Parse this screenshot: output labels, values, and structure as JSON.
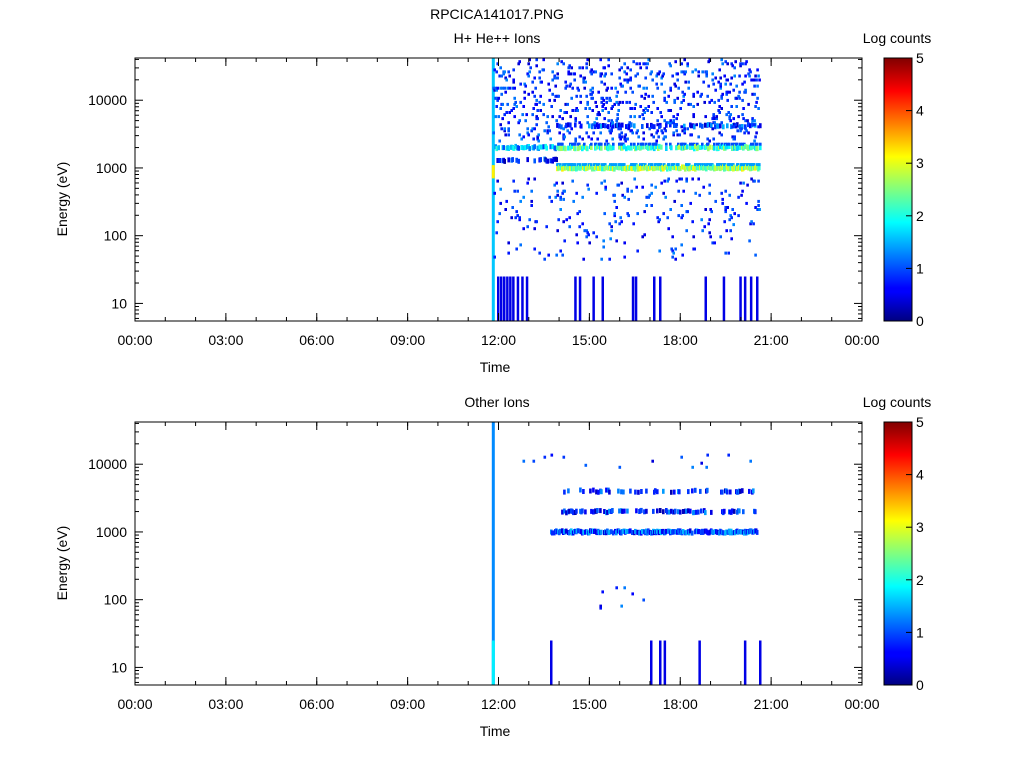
{
  "page_title": "RPCICA141017.PNG",
  "chart_data": [
    {
      "type": "heatmap",
      "title": "H+ He++ Ions",
      "xlabel": "Time",
      "ylabel": "Energy (eV)",
      "x_ticks": [
        "00:00",
        "03:00",
        "06:00",
        "09:00",
        "12:00",
        "15:00",
        "18:00",
        "21:00",
        "00:00"
      ],
      "x_range_hours": [
        0,
        24
      ],
      "y_scale": "log",
      "y_ticks": [
        {
          "value": 10,
          "label": "10"
        },
        {
          "value": 100,
          "label": "100"
        },
        {
          "value": 1000,
          "label": "1000"
        },
        {
          "value": 10000,
          "label": "10000"
        }
      ],
      "y_range": [
        5.5,
        42000
      ],
      "colorbar": {
        "label": "Log counts",
        "range": [
          0,
          5
        ],
        "ticks": [
          "0",
          "1",
          "2",
          "3",
          "4",
          "5"
        ]
      },
      "data_coverage_hours": [
        11.75,
        20.6
      ],
      "seed": 7,
      "features": [
        {
          "kind": "column",
          "x": 11.78,
          "y_from": 5.5,
          "y_to": 42000,
          "level": 1.6
        },
        {
          "kind": "column",
          "x": 11.78,
          "y_from": 700,
          "y_to": 1100,
          "level": 3.2
        },
        {
          "kind": "band",
          "x_from": 11.8,
          "x_to": 13.9,
          "energy": 2000,
          "level": 1.5,
          "density": 0.6
        },
        {
          "kind": "band",
          "x_from": 13.9,
          "x_to": 20.6,
          "energy": 2000,
          "level": 2.2,
          "density": 0.6
        },
        {
          "kind": "band",
          "x_from": 11.8,
          "x_to": 13.9,
          "energy": 1300,
          "level": 0.7,
          "density": 0.4
        },
        {
          "kind": "band",
          "x_from": 13.9,
          "x_to": 20.6,
          "energy": 1000,
          "level": 2.6,
          "density": 0.95
        },
        {
          "kind": "band",
          "x_from": 13.9,
          "x_to": 20.6,
          "energy": 4200,
          "level": 0.9,
          "density": 0.35
        },
        {
          "kind": "scatter",
          "x_from": 11.8,
          "x_to": 20.6,
          "y_from": 2500,
          "y_to": 40000,
          "level": 0.4,
          "density": 0.35
        },
        {
          "kind": "scatter",
          "x_from": 11.8,
          "x_to": 20.6,
          "y_from": 150,
          "y_to": 700,
          "level": 0.4,
          "density": 0.16
        },
        {
          "kind": "scatter",
          "x_from": 11.8,
          "x_to": 20.6,
          "y_from": 45,
          "y_to": 150,
          "level": 0.4,
          "density": 0.08
        },
        {
          "kind": "bars",
          "y_from": 5.5,
          "y_to": 25,
          "level": 0.5,
          "xs": [
            11.95,
            12.05,
            12.15,
            12.25,
            12.35,
            12.45,
            12.6,
            12.75,
            12.9,
            14.5,
            14.65,
            15.1,
            15.4,
            16.4,
            16.5,
            17.1,
            17.3,
            18.8,
            19.4,
            19.95,
            20.1,
            20.3,
            20.5
          ]
        }
      ]
    },
    {
      "type": "heatmap",
      "title": "Other Ions",
      "xlabel": "Time",
      "ylabel": "Energy (eV)",
      "x_ticks": [
        "00:00",
        "03:00",
        "06:00",
        "09:00",
        "12:00",
        "15:00",
        "18:00",
        "21:00",
        "00:00"
      ],
      "x_range_hours": [
        0,
        24
      ],
      "y_scale": "log",
      "y_ticks": [
        {
          "value": 10,
          "label": "10"
        },
        {
          "value": 100,
          "label": "100"
        },
        {
          "value": 1000,
          "label": "1000"
        },
        {
          "value": 10000,
          "label": "10000"
        }
      ],
      "y_range": [
        5.5,
        42000
      ],
      "colorbar": {
        "label": "Log counts",
        "range": [
          0,
          5
        ],
        "ticks": [
          "0",
          "1",
          "2",
          "3",
          "4",
          "5"
        ]
      },
      "data_coverage_hours": [
        11.75,
        20.6
      ],
      "seed": 13,
      "features": [
        {
          "kind": "column",
          "x": 11.78,
          "y_from": 5.5,
          "y_to": 42000,
          "level": 1.3
        },
        {
          "kind": "column",
          "x": 11.78,
          "y_from": 5.5,
          "y_to": 25,
          "level": 1.8
        },
        {
          "kind": "band",
          "x_from": 13.7,
          "x_to": 20.5,
          "energy": 1000,
          "level": 1.0,
          "density": 0.9
        },
        {
          "kind": "band",
          "x_from": 14.0,
          "x_to": 20.5,
          "energy": 2000,
          "level": 0.8,
          "density": 0.45
        },
        {
          "kind": "band",
          "x_from": 14.0,
          "x_to": 20.5,
          "energy": 4000,
          "level": 0.8,
          "density": 0.3
        },
        {
          "kind": "scatter",
          "x_from": 12.0,
          "x_to": 20.5,
          "y_from": 9000,
          "y_to": 14000,
          "level": 0.4,
          "density": 0.03
        },
        {
          "kind": "scatter",
          "x_from": 15.0,
          "x_to": 17.5,
          "y_from": 75,
          "y_to": 200,
          "level": 0.4,
          "density": 0.04
        },
        {
          "kind": "bars",
          "y_from": 5.5,
          "y_to": 25,
          "level": 0.5,
          "xs": [
            13.7,
            17.0,
            17.3,
            17.45,
            18.6,
            20.1,
            20.6
          ]
        }
      ]
    }
  ]
}
